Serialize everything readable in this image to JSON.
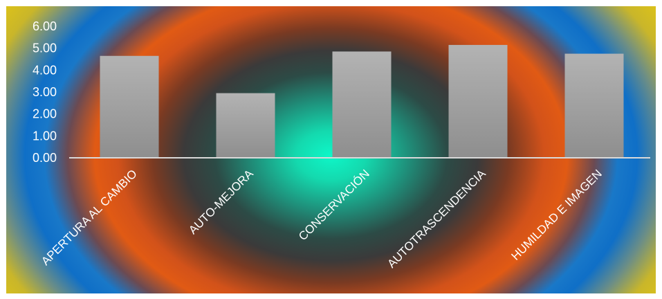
{
  "chart_data": {
    "type": "bar",
    "categories": [
      "APERTURA AL CAMBIO",
      "AUTO-MEJORA",
      "CONSERVACIÓN",
      "AUTOTRASCENDENCIA",
      "HUMILDAD E IMAGEN"
    ],
    "values": [
      4.65,
      2.95,
      4.85,
      5.15,
      4.75
    ],
    "y_ticks": [
      "0.00",
      "1.00",
      "2.00",
      "3.00",
      "4.00",
      "5.00",
      "6.00"
    ],
    "ylim": [
      0,
      6
    ],
    "grid": false,
    "legend": "none",
    "colors": {
      "bar_top": "#b3b3b3",
      "bar_bottom": "#8e8e8e",
      "axis": "#d9d9d9",
      "text": "#ffffff"
    }
  }
}
